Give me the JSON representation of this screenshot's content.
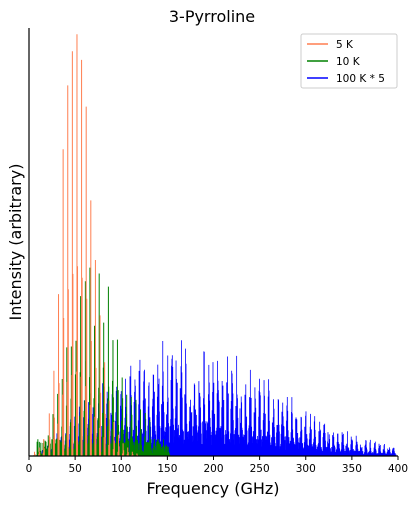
{
  "chart_data": {
    "type": "line",
    "title": "3-Pyrroline",
    "xlabel": "Frequency (GHz)",
    "ylabel": "Intensity (arbitrary)",
    "xlim": [
      0,
      400
    ],
    "ylim": [
      0,
      1
    ],
    "x_ticks": [
      "0",
      "50",
      "100",
      "150",
      "200",
      "250",
      "300",
      "350",
      "400"
    ],
    "y_ticks_visible": false,
    "grid": false,
    "legend_position": "top-right",
    "series": [
      {
        "name": "5 K",
        "color": "#ff7f50",
        "style": "stick spectrum",
        "peaks": [
          [
            6,
            0.01
          ],
          [
            11,
            0.02
          ],
          [
            16,
            0.04
          ],
          [
            22,
            0.1
          ],
          [
            27,
            0.2
          ],
          [
            32,
            0.38
          ],
          [
            37,
            0.72
          ],
          [
            42,
            0.87
          ],
          [
            47,
            0.95
          ],
          [
            52,
            0.99
          ],
          [
            57,
            0.93
          ],
          [
            62,
            0.82
          ],
          [
            67,
            0.6
          ],
          [
            72,
            0.46
          ],
          [
            77,
            0.33
          ],
          [
            82,
            0.22
          ],
          [
            87,
            0.13
          ],
          [
            92,
            0.08
          ],
          [
            97,
            0.05
          ],
          [
            102,
            0.03
          ],
          [
            107,
            0.02
          ],
          [
            112,
            0.01
          ],
          [
            117,
            0.006
          ]
        ]
      },
      {
        "name": "10 K",
        "color": "#008000",
        "style": "stick spectrum",
        "peaks": [
          [
            6,
            0.005
          ],
          [
            11,
            0.01
          ],
          [
            16,
            0.03
          ],
          [
            21,
            0.06
          ],
          [
            26,
            0.1
          ],
          [
            31,
            0.15
          ],
          [
            36,
            0.23
          ],
          [
            41,
            0.3
          ],
          [
            46,
            0.37
          ],
          [
            51,
            0.42
          ],
          [
            56,
            0.46
          ],
          [
            61,
            0.49
          ],
          [
            66,
            0.52
          ],
          [
            71,
            0.52
          ],
          [
            76,
            0.5
          ],
          [
            81,
            0.46
          ],
          [
            86,
            0.42
          ],
          [
            91,
            0.38
          ],
          [
            96,
            0.34
          ],
          [
            101,
            0.3
          ],
          [
            106,
            0.25
          ],
          [
            111,
            0.21
          ],
          [
            116,
            0.17
          ],
          [
            121,
            0.14
          ],
          [
            126,
            0.11
          ],
          [
            131,
            0.09
          ],
          [
            136,
            0.07
          ],
          [
            141,
            0.05
          ],
          [
            146,
            0.04
          ],
          [
            151,
            0.03
          ]
        ]
      },
      {
        "name": "100 K * 5",
        "color": "#0000ff",
        "style": "stick spectrum",
        "envelope": [
          [
            10,
            0.01
          ],
          [
            20,
            0.03
          ],
          [
            30,
            0.06
          ],
          [
            40,
            0.09
          ],
          [
            50,
            0.13
          ],
          [
            60,
            0.15
          ],
          [
            70,
            0.17
          ],
          [
            80,
            0.19
          ],
          [
            90,
            0.2
          ],
          [
            100,
            0.21
          ],
          [
            110,
            0.23
          ],
          [
            120,
            0.25
          ],
          [
            130,
            0.26
          ],
          [
            140,
            0.27
          ],
          [
            150,
            0.28
          ],
          [
            160,
            0.28
          ],
          [
            170,
            0.285
          ],
          [
            180,
            0.285
          ],
          [
            190,
            0.28
          ],
          [
            200,
            0.275
          ],
          [
            210,
            0.26
          ],
          [
            220,
            0.25
          ],
          [
            230,
            0.235
          ],
          [
            240,
            0.22
          ],
          [
            250,
            0.205
          ],
          [
            260,
            0.185
          ],
          [
            270,
            0.17
          ],
          [
            280,
            0.15
          ],
          [
            290,
            0.135
          ],
          [
            300,
            0.12
          ],
          [
            310,
            0.105
          ],
          [
            320,
            0.09
          ],
          [
            330,
            0.08
          ],
          [
            340,
            0.07
          ],
          [
            350,
            0.06
          ],
          [
            360,
            0.05
          ],
          [
            370,
            0.04
          ],
          [
            380,
            0.035
          ],
          [
            390,
            0.03
          ],
          [
            398,
            0.025
          ]
        ]
      }
    ]
  }
}
